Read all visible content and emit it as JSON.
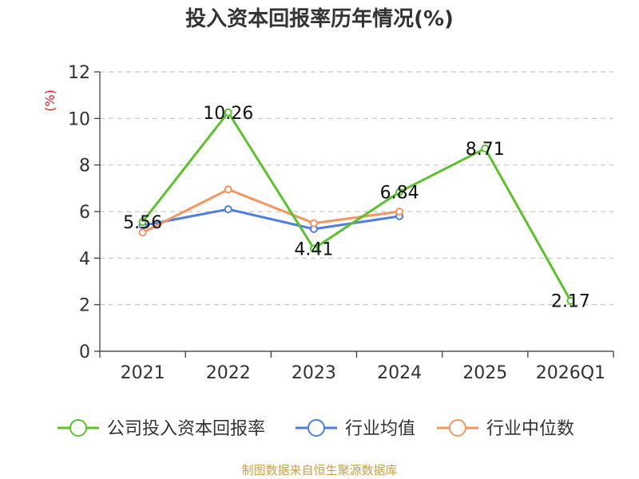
{
  "title": "投入资本回报率历年情况(%)",
  "source": "制图数据来自恒生聚源数据库",
  "chart_data": {
    "type": "line",
    "title": "投入资本回报率历年情况(%)",
    "xlabel": "",
    "ylabel": "(%)",
    "ylim": [
      0,
      12
    ],
    "yticks": [
      0,
      2,
      4,
      6,
      8,
      10,
      12
    ],
    "grid": true,
    "legend_position": "bottom",
    "categories": [
      "2021",
      "2022",
      "2023",
      "2024",
      "2025",
      "2026Q1"
    ],
    "series": [
      {
        "name": "公司投入资本回报率",
        "color": "#5cc22a",
        "values": [
          5.56,
          10.26,
          4.41,
          6.84,
          8.71,
          2.17
        ],
        "data_labels": [
          "5.56",
          "10.26",
          "4.41",
          "6.84",
          "8.71",
          "2.17"
        ]
      },
      {
        "name": "行业均值",
        "color": "#4f7fdc",
        "values": [
          5.4,
          6.1,
          5.25,
          5.8,
          null,
          null
        ]
      },
      {
        "name": "行业中位数",
        "color": "#f39662",
        "values": [
          5.1,
          6.95,
          5.5,
          6.0,
          null,
          null
        ]
      }
    ]
  }
}
